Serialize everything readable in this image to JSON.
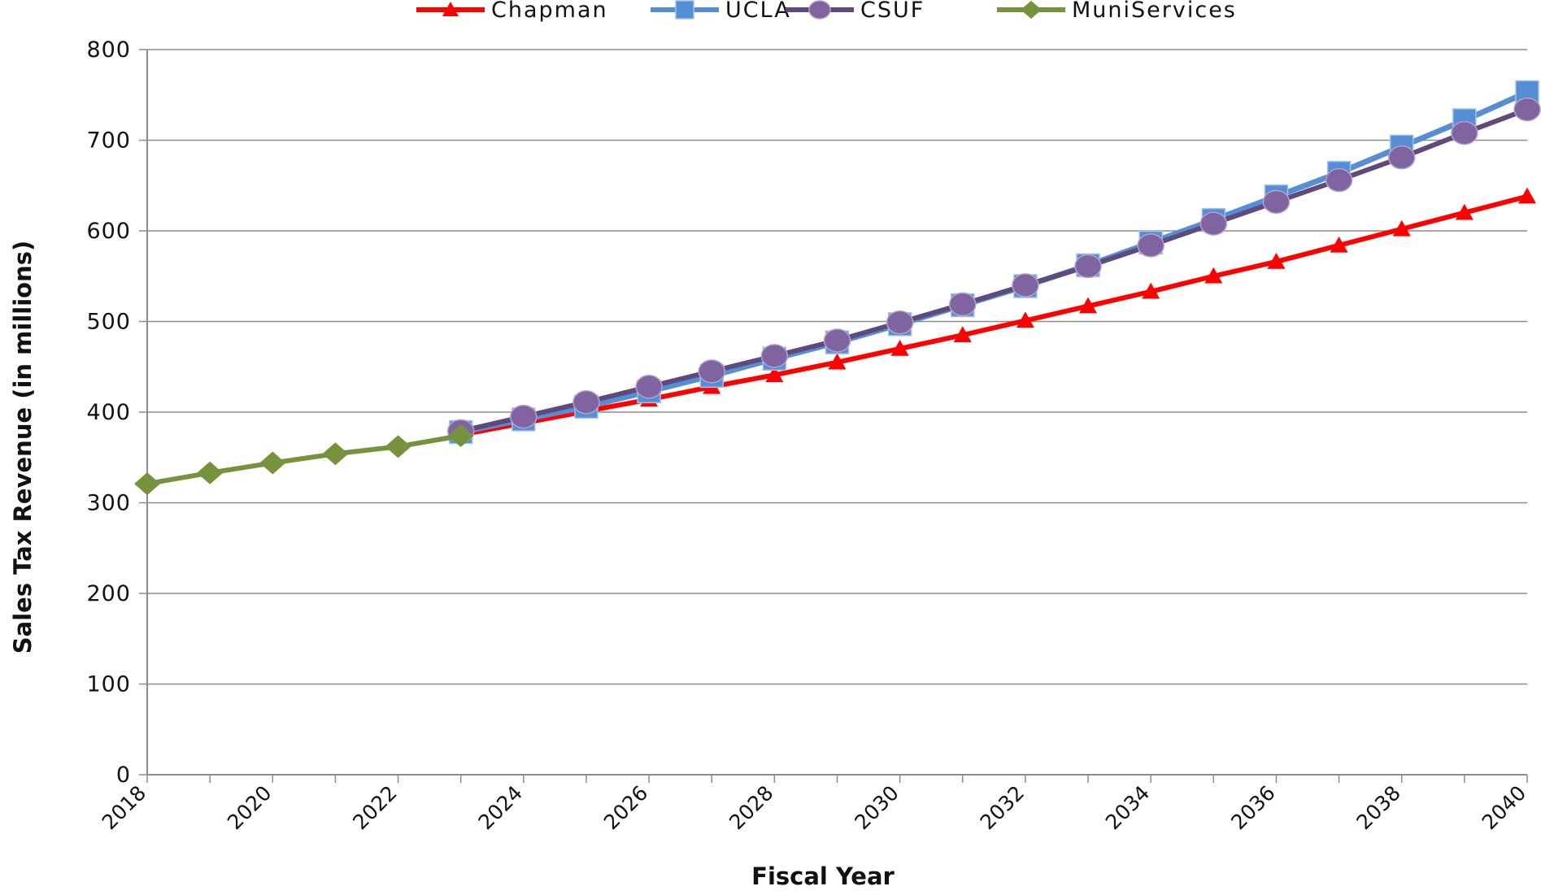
{
  "chart_data": {
    "type": "line",
    "title": "",
    "xlabel": "Fiscal Year",
    "ylabel": "Sales Tax Revenue (in millions)",
    "xlim": [
      2018,
      2040
    ],
    "ylim": [
      0,
      800
    ],
    "x_ticks": [
      2018,
      2020,
      2022,
      2024,
      2026,
      2028,
      2030,
      2032,
      2034,
      2036,
      2038,
      2040
    ],
    "y_ticks": [
      0,
      100,
      200,
      300,
      400,
      500,
      600,
      700,
      800
    ],
    "grid": "horizontal",
    "legend_position": "top",
    "series": [
      {
        "name": "Chapman",
        "color": "#ff0000",
        "marker": "triangle",
        "x": [
          2023,
          2024,
          2025,
          2026,
          2027,
          2028,
          2029,
          2030,
          2031,
          2032,
          2033,
          2034,
          2035,
          2036,
          2037,
          2038,
          2039,
          2040
        ],
        "y": [
          375,
          388,
          401,
          414,
          428,
          441,
          455,
          470,
          485,
          501,
          517,
          533,
          550,
          566,
          584,
          602,
          620,
          638
        ]
      },
      {
        "name": "UCLA",
        "color": "#558ed5",
        "marker": "square",
        "x": [
          2023,
          2024,
          2025,
          2026,
          2027,
          2028,
          2029,
          2030,
          2031,
          2032,
          2033,
          2034,
          2035,
          2036,
          2037,
          2038,
          2039,
          2040
        ],
        "y": [
          378,
          392,
          406,
          423,
          440,
          459,
          477,
          497,
          518,
          539,
          562,
          587,
          612,
          638,
          664,
          693,
          722,
          753
        ]
      },
      {
        "name": "CSUF",
        "color": "#604a7b",
        "marker": "circle",
        "x": [
          2023,
          2024,
          2025,
          2026,
          2027,
          2028,
          2029,
          2030,
          2031,
          2032,
          2033,
          2034,
          2035,
          2036,
          2037,
          2038,
          2039,
          2040
        ],
        "y": [
          379,
          395,
          411,
          428,
          445,
          462,
          479,
          499,
          519,
          540,
          561,
          584,
          608,
          632,
          656,
          681,
          708,
          734
        ]
      },
      {
        "name": "MuniServices",
        "color": "#76923c",
        "marker": "diamond",
        "x": [
          2018,
          2019,
          2020,
          2021,
          2022,
          2023
        ],
        "y": [
          321,
          333,
          344,
          354,
          362,
          374
        ]
      }
    ]
  }
}
